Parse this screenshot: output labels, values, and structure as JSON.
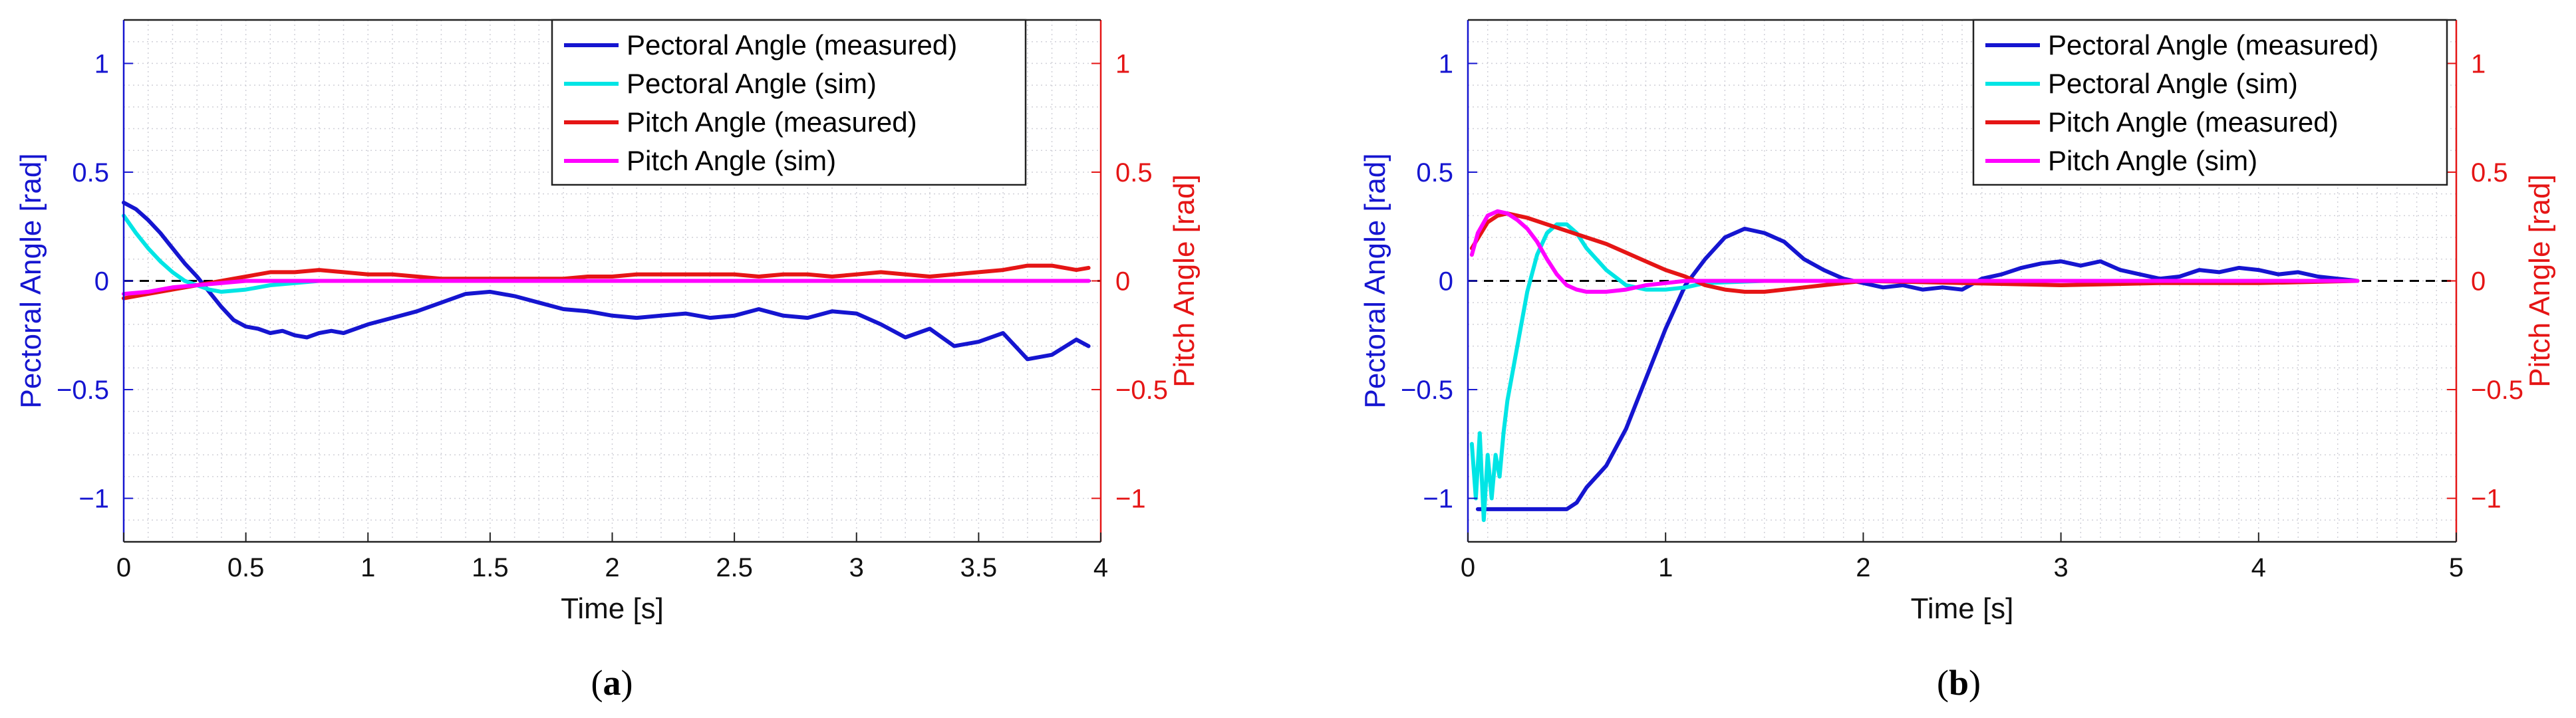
{
  "chart_data": [
    {
      "type": "line",
      "panel_label_parts": [
        "(",
        "a",
        ")"
      ],
      "xlabel": "Time [s]",
      "ylabel_left": "Pectoral Angle [rad]",
      "ylabel_right": "Pitch Angle [rad]",
      "xlim": [
        0,
        4
      ],
      "ylim": [
        -1.2,
        1.2
      ],
      "x_ticks": [
        0,
        0.5,
        1,
        1.5,
        2,
        2.5,
        3,
        3.5,
        4
      ],
      "x_tick_labels": [
        "0",
        "0.5",
        "1",
        "1.5",
        "2",
        "2.5",
        "3",
        "3.5",
        "4"
      ],
      "y_ticks": [
        -1,
        -0.5,
        0,
        0.5,
        1
      ],
      "y_tick_labels_left": [
        "−1",
        "−0.5",
        "0",
        "0.5",
        "1"
      ],
      "y_tick_labels_right": [
        "−1",
        "−0.5",
        "0",
        "0.5",
        "1"
      ],
      "grid": "minor dotted",
      "legend_position": "top-right",
      "series": [
        {
          "name": "Pectoral Angle (measured)",
          "color": "#1515d0",
          "x": [
            0,
            0.05,
            0.1,
            0.15,
            0.2,
            0.25,
            0.3,
            0.35,
            0.4,
            0.45,
            0.5,
            0.55,
            0.6,
            0.65,
            0.7,
            0.75,
            0.8,
            0.85,
            0.9,
            0.95,
            1.0,
            1.1,
            1.2,
            1.3,
            1.4,
            1.5,
            1.6,
            1.7,
            1.8,
            1.9,
            2.0,
            2.1,
            2.2,
            2.3,
            2.4,
            2.5,
            2.6,
            2.7,
            2.8,
            2.9,
            3.0,
            3.1,
            3.2,
            3.3,
            3.4,
            3.5,
            3.6,
            3.7,
            3.8,
            3.9,
            3.95
          ],
          "y": [
            0.36,
            0.33,
            0.28,
            0.22,
            0.15,
            0.08,
            0.02,
            -0.05,
            -0.12,
            -0.18,
            -0.21,
            -0.22,
            -0.24,
            -0.23,
            -0.25,
            -0.26,
            -0.24,
            -0.23,
            -0.24,
            -0.22,
            -0.2,
            -0.17,
            -0.14,
            -0.1,
            -0.06,
            -0.05,
            -0.07,
            -0.1,
            -0.13,
            -0.14,
            -0.16,
            -0.17,
            -0.16,
            -0.15,
            -0.17,
            -0.16,
            -0.13,
            -0.16,
            -0.17,
            -0.14,
            -0.15,
            -0.2,
            -0.26,
            -0.22,
            -0.3,
            -0.28,
            -0.24,
            -0.36,
            -0.34,
            -0.27,
            -0.3
          ]
        },
        {
          "name": "Pectoral Angle (sim)",
          "color": "#00e5e5",
          "x": [
            0,
            0.05,
            0.1,
            0.15,
            0.2,
            0.25,
            0.3,
            0.35,
            0.4,
            0.5,
            0.6,
            0.7,
            0.8,
            1.0,
            1.5,
            2.0,
            3.0,
            3.95
          ],
          "y": [
            0.3,
            0.22,
            0.15,
            0.09,
            0.04,
            0.0,
            -0.02,
            -0.04,
            -0.05,
            -0.04,
            -0.02,
            -0.01,
            0.0,
            0.0,
            0.0,
            0.0,
            0.0,
            0.0
          ]
        },
        {
          "name": "Pitch Angle (measured)",
          "color": "#e51515",
          "x": [
            0,
            0.1,
            0.2,
            0.3,
            0.4,
            0.5,
            0.6,
            0.7,
            0.8,
            0.9,
            1.0,
            1.1,
            1.2,
            1.3,
            1.4,
            1.5,
            1.6,
            1.7,
            1.8,
            1.9,
            2.0,
            2.1,
            2.2,
            2.3,
            2.4,
            2.5,
            2.6,
            2.7,
            2.8,
            2.9,
            3.0,
            3.1,
            3.2,
            3.3,
            3.4,
            3.5,
            3.6,
            3.7,
            3.8,
            3.9,
            3.95
          ],
          "y": [
            -0.08,
            -0.06,
            -0.04,
            -0.02,
            0.0,
            0.02,
            0.04,
            0.04,
            0.05,
            0.04,
            0.03,
            0.03,
            0.02,
            0.01,
            0.01,
            0.01,
            0.01,
            0.01,
            0.01,
            0.02,
            0.02,
            0.03,
            0.03,
            0.03,
            0.03,
            0.03,
            0.02,
            0.03,
            0.03,
            0.02,
            0.03,
            0.04,
            0.03,
            0.02,
            0.03,
            0.04,
            0.05,
            0.07,
            0.07,
            0.05,
            0.06
          ]
        },
        {
          "name": "Pitch Angle (sim)",
          "color": "#ff00ff",
          "x": [
            0,
            0.1,
            0.2,
            0.3,
            0.4,
            0.5,
            0.6,
            0.8,
            1.0,
            1.5,
            2.0,
            3.0,
            3.95
          ],
          "y": [
            -0.06,
            -0.05,
            -0.03,
            -0.02,
            -0.01,
            0.0,
            0.0,
            0.0,
            0.0,
            0.0,
            0.0,
            0.0,
            0.0
          ]
        }
      ]
    },
    {
      "type": "line",
      "panel_label_parts": [
        "(",
        "b",
        ")"
      ],
      "xlabel": "Time [s]",
      "ylabel_left": "Pectoral Angle [rad]",
      "ylabel_right": "Pitch Angle [rad]",
      "xlim": [
        0,
        5
      ],
      "ylim": [
        -1.2,
        1.2
      ],
      "x_ticks": [
        0,
        1,
        2,
        3,
        4,
        5
      ],
      "x_tick_labels": [
        "0",
        "1",
        "2",
        "3",
        "4",
        "5"
      ],
      "y_ticks": [
        -1,
        -0.5,
        0,
        0.5,
        1
      ],
      "y_tick_labels_left": [
        "−1",
        "−0.5",
        "0",
        "0.5",
        "1"
      ],
      "y_tick_labels_right": [
        "−1",
        "−0.5",
        "0",
        "0.5",
        "1"
      ],
      "grid": "minor dotted",
      "legend_position": "top-right",
      "series": [
        {
          "name": "Pectoral Angle (measured)",
          "color": "#1515d0",
          "x": [
            0.05,
            0.1,
            0.2,
            0.3,
            0.4,
            0.5,
            0.55,
            0.6,
            0.7,
            0.8,
            0.9,
            1.0,
            1.1,
            1.2,
            1.3,
            1.4,
            1.5,
            1.6,
            1.7,
            1.8,
            1.9,
            2.0,
            2.1,
            2.2,
            2.3,
            2.4,
            2.5,
            2.6,
            2.7,
            2.8,
            2.9,
            3.0,
            3.1,
            3.2,
            3.3,
            3.4,
            3.5,
            3.6,
            3.7,
            3.8,
            3.9,
            4.0,
            4.1,
            4.2,
            4.3,
            4.4,
            4.5
          ],
          "y": [
            -1.05,
            -1.05,
            -1.05,
            -1.05,
            -1.05,
            -1.05,
            -1.02,
            -0.95,
            -0.85,
            -0.68,
            -0.45,
            -0.22,
            -0.02,
            0.1,
            0.2,
            0.24,
            0.22,
            0.18,
            0.1,
            0.05,
            0.01,
            -0.01,
            -0.03,
            -0.02,
            -0.04,
            -0.03,
            -0.04,
            0.01,
            0.03,
            0.06,
            0.08,
            0.09,
            0.07,
            0.09,
            0.05,
            0.03,
            0.01,
            0.02,
            0.05,
            0.04,
            0.06,
            0.05,
            0.03,
            0.04,
            0.02,
            0.01,
            0.0
          ]
        },
        {
          "name": "Pectoral Angle (sim)",
          "color": "#00e5e5",
          "x": [
            0.02,
            0.04,
            0.06,
            0.08,
            0.1,
            0.12,
            0.14,
            0.16,
            0.18,
            0.2,
            0.25,
            0.3,
            0.35,
            0.4,
            0.45,
            0.5,
            0.55,
            0.6,
            0.7,
            0.8,
            0.9,
            1.0,
            1.1,
            1.2,
            1.5,
            2.0,
            3.0,
            4.5
          ],
          "y": [
            -0.75,
            -1.0,
            -0.7,
            -1.1,
            -0.8,
            -1.0,
            -0.8,
            -0.9,
            -0.7,
            -0.55,
            -0.3,
            -0.05,
            0.12,
            0.22,
            0.26,
            0.26,
            0.22,
            0.15,
            0.05,
            -0.02,
            -0.04,
            -0.04,
            -0.03,
            -0.01,
            0.0,
            0.0,
            0.0,
            0.0
          ]
        },
        {
          "name": "Pitch Angle (measured)",
          "color": "#e51515",
          "x": [
            0.02,
            0.1,
            0.15,
            0.2,
            0.3,
            0.4,
            0.5,
            0.6,
            0.7,
            0.8,
            0.9,
            1.0,
            1.1,
            1.2,
            1.3,
            1.4,
            1.5,
            1.6,
            1.7,
            1.8,
            1.9,
            2.0,
            2.5,
            3.0,
            3.5,
            4.0,
            4.5
          ],
          "y": [
            0.15,
            0.27,
            0.3,
            0.31,
            0.29,
            0.26,
            0.23,
            0.2,
            0.17,
            0.13,
            0.09,
            0.05,
            0.02,
            -0.02,
            -0.04,
            -0.05,
            -0.05,
            -0.04,
            -0.03,
            -0.02,
            -0.01,
            0.0,
            -0.01,
            -0.02,
            -0.01,
            -0.01,
            0.0
          ]
        },
        {
          "name": "Pitch Angle (sim)",
          "color": "#ff00ff",
          "x": [
            0.02,
            0.05,
            0.1,
            0.15,
            0.2,
            0.25,
            0.3,
            0.35,
            0.4,
            0.45,
            0.5,
            0.55,
            0.6,
            0.65,
            0.7,
            0.8,
            0.9,
            1.0,
            1.1,
            1.2,
            1.5,
            2.0,
            3.0,
            4.5
          ],
          "y": [
            0.12,
            0.22,
            0.3,
            0.32,
            0.31,
            0.28,
            0.24,
            0.18,
            0.1,
            0.03,
            -0.02,
            -0.04,
            -0.05,
            -0.05,
            -0.05,
            -0.04,
            -0.02,
            -0.01,
            0.0,
            0.0,
            0.0,
            0.0,
            0.0,
            0.0
          ]
        }
      ]
    }
  ]
}
